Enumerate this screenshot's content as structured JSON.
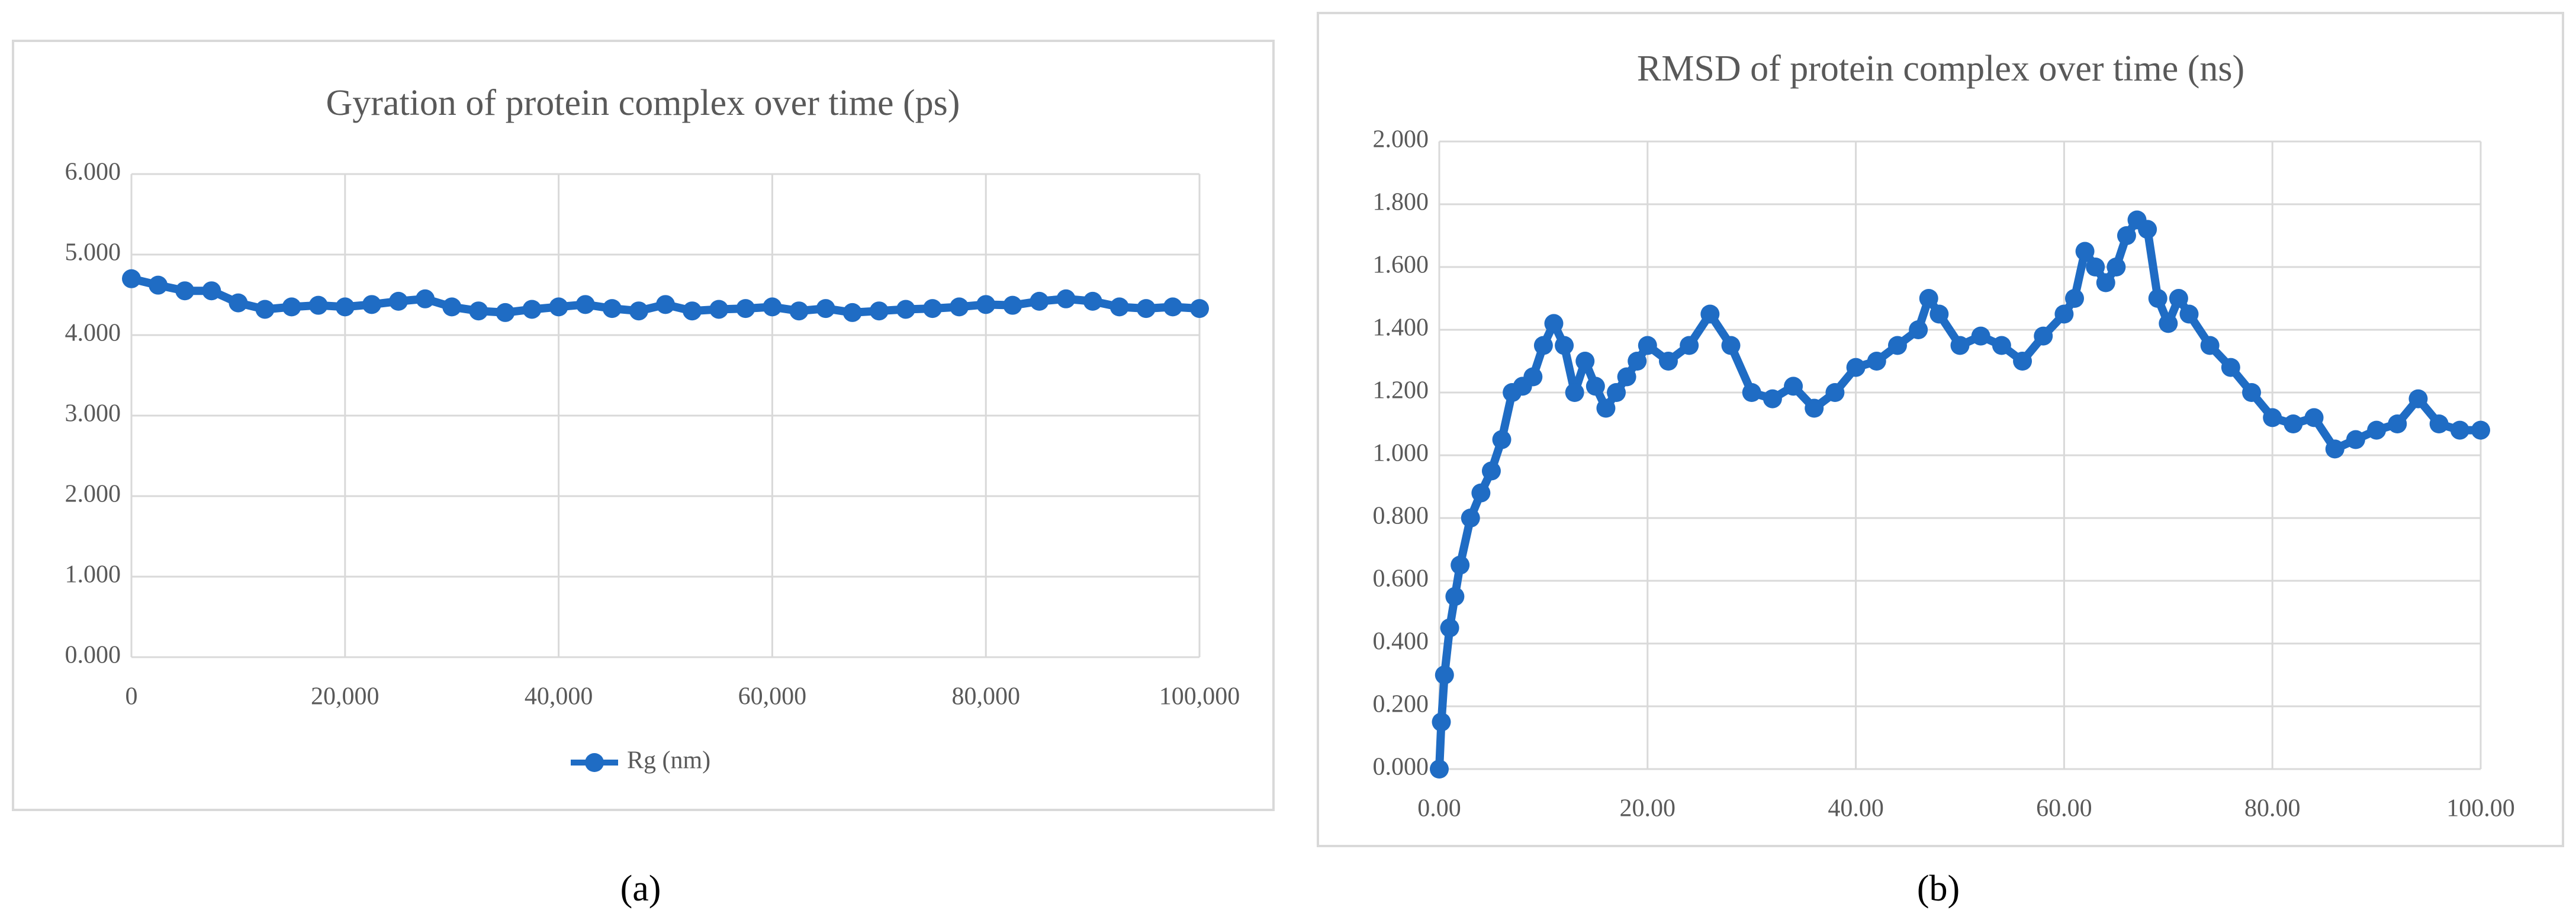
{
  "chart_data": [
    {
      "type": "line",
      "title": "Gyration of protein complex over time (ps)",
      "caption": "(a)",
      "x": [
        0,
        2500,
        5000,
        7500,
        10000,
        12500,
        15000,
        17500,
        20000,
        22500,
        25000,
        27500,
        30000,
        32500,
        35000,
        37500,
        40000,
        42500,
        45000,
        47500,
        50000,
        52500,
        55000,
        57500,
        60000,
        62500,
        65000,
        67500,
        70000,
        72500,
        75000,
        77500,
        80000,
        82500,
        85000,
        87500,
        90000,
        92500,
        95000,
        97500,
        100000
      ],
      "series": [
        {
          "name": "Rg (nm)",
          "color": "#1f6cc4",
          "values": [
            4.7,
            4.62,
            4.55,
            4.55,
            4.4,
            4.32,
            4.35,
            4.37,
            4.35,
            4.38,
            4.42,
            4.45,
            4.35,
            4.3,
            4.28,
            4.32,
            4.35,
            4.38,
            4.33,
            4.3,
            4.38,
            4.3,
            4.32,
            4.33,
            4.35,
            4.3,
            4.33,
            4.28,
            4.3,
            4.32,
            4.33,
            4.35,
            4.38,
            4.37,
            4.42,
            4.45,
            4.42,
            4.35,
            4.33,
            4.35,
            4.33
          ]
        }
      ],
      "xlim": [
        0,
        100000
      ],
      "xticks": [
        0,
        {
          "value": 20000,
          "label": "20,000"
        },
        {
          "value": 40000,
          "label": "40,000"
        },
        {
          "value": 60000,
          "label": "60,000"
        },
        {
          "value": 80000,
          "label": "80,000"
        },
        {
          "value": 100000,
          "label": "100,000"
        }
      ],
      "ylim": [
        0,
        6
      ],
      "yticks": [
        {
          "value": 0,
          "label": "0.000"
        },
        {
          "value": 1,
          "label": "1.000"
        },
        {
          "value": 2,
          "label": "2.000"
        },
        {
          "value": 3,
          "label": "3.000"
        },
        {
          "value": 4,
          "label": "4.000"
        },
        {
          "value": 5,
          "label": "5.000"
        },
        {
          "value": 6,
          "label": "6.000"
        }
      ],
      "grid": true,
      "legend": "bottom"
    },
    {
      "type": "line",
      "title": "RMSD of protein complex over time (ns)",
      "caption": "(b)",
      "x": [
        0,
        0.2,
        0.5,
        1,
        1.5,
        2,
        3,
        4,
        5,
        6,
        7,
        8,
        9,
        10,
        11,
        12,
        13,
        14,
        15,
        16,
        17,
        18,
        19,
        20,
        22,
        24,
        26,
        28,
        30,
        32,
        34,
        36,
        38,
        40,
        42,
        44,
        46,
        47,
        48,
        50,
        52,
        54,
        56,
        58,
        60,
        61,
        62,
        63,
        64,
        65,
        66,
        67,
        68,
        69,
        70,
        71,
        72,
        74,
        76,
        78,
        80,
        82,
        84,
        86,
        88,
        90,
        92,
        94,
        96,
        98,
        100
      ],
      "series": [
        {
          "color": "#1f6cc4",
          "values": [
            0.0,
            0.15,
            0.3,
            0.45,
            0.55,
            0.65,
            0.8,
            0.88,
            0.95,
            1.05,
            1.2,
            1.22,
            1.25,
            1.35,
            1.42,
            1.35,
            1.2,
            1.3,
            1.22,
            1.15,
            1.2,
            1.25,
            1.3,
            1.35,
            1.3,
            1.35,
            1.45,
            1.35,
            1.2,
            1.18,
            1.22,
            1.15,
            1.2,
            1.28,
            1.3,
            1.35,
            1.4,
            1.5,
            1.45,
            1.35,
            1.38,
            1.35,
            1.3,
            1.38,
            1.45,
            1.5,
            1.65,
            1.6,
            1.55,
            1.6,
            1.7,
            1.75,
            1.72,
            1.5,
            1.42,
            1.5,
            1.45,
            1.35,
            1.28,
            1.2,
            1.12,
            1.1,
            1.12,
            1.02,
            1.05,
            1.08,
            1.1,
            1.18,
            1.1,
            1.08,
            1.08
          ]
        }
      ],
      "xlim": [
        0,
        100
      ],
      "xticks": [
        {
          "value": 0,
          "label": "0.00"
        },
        {
          "value": 20,
          "label": "20.00"
        },
        {
          "value": 40,
          "label": "40.00"
        },
        {
          "value": 60,
          "label": "60.00"
        },
        {
          "value": 80,
          "label": "80.00"
        },
        {
          "value": 100,
          "label": "100.00"
        }
      ],
      "ylim": [
        0,
        2
      ],
      "yticks": [
        {
          "value": 0,
          "label": "0.000"
        },
        {
          "value": 0.2,
          "label": "0.200"
        },
        {
          "value": 0.4,
          "label": "0.400"
        },
        {
          "value": 0.6,
          "label": "0.600"
        },
        {
          "value": 0.8,
          "label": "0.800"
        },
        {
          "value": 1,
          "label": "1.000"
        },
        {
          "value": 1.2,
          "label": "1.200"
        },
        {
          "value": 1.4,
          "label": "1.400"
        },
        {
          "value": 1.6,
          "label": "1.600"
        },
        {
          "value": 1.8,
          "label": "1.800"
        },
        {
          "value": 2,
          "label": "2.000"
        }
      ],
      "grid": true
    }
  ]
}
